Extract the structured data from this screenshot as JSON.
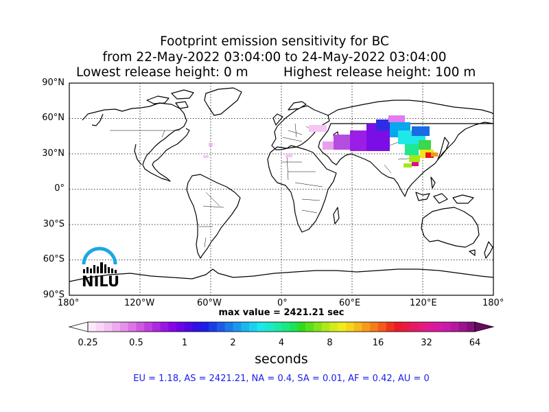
{
  "title": {
    "line1": "Footprint emission sensitivity for BC",
    "line2": "from 22-May-2022 03:04:00 to 24-May-2022 03:04:00",
    "lowest": "Lowest release height: 0 m",
    "highest": "Highest release height: 100 m"
  },
  "map": {
    "lat_labels": [
      "90°N",
      "60°N",
      "30°N",
      "0°",
      "30°S",
      "60°S",
      "90°S"
    ],
    "lon_labels": [
      "180°",
      "120°W",
      "60°W",
      "0°",
      "60°E",
      "120°E",
      "180°"
    ],
    "grid": "dotted",
    "projection": "cylindrical"
  },
  "max_value": "max value = 2421.21 sec",
  "colorbar": {
    "ticks": [
      "0.25",
      "0.5",
      "1",
      "2",
      "4",
      "8",
      "16",
      "32",
      "64"
    ],
    "unit": "seconds",
    "extend": "both"
  },
  "totals": "EU = 1.18,  AS = 2421.21,  NA = 0.4,  SA = 0.01,  AF = 0.42,  AU = 0",
  "logo": {
    "text": "NILU"
  },
  "colors": {
    "totals_text": "#1a1af0",
    "logo_arc": "#1aa7e6"
  }
}
